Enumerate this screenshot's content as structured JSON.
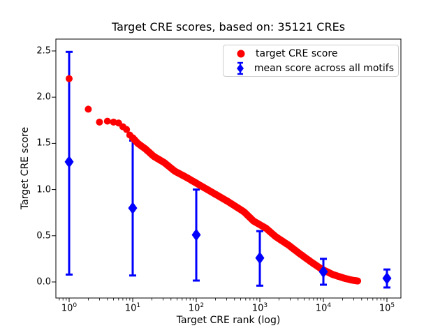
{
  "chart_data": {
    "type": "scatter",
    "title": "Target CRE scores, based on: 35121 CREs",
    "xlabel": "Target CRE rank (log)",
    "ylabel": "Target CRE score",
    "x_scale": "log",
    "x_tick_exponents": [
      0,
      1,
      2,
      3,
      4,
      5
    ],
    "y_tick_labels": [
      "0.0",
      "0.5",
      "1.0",
      "1.5",
      "2.0",
      "2.5"
    ],
    "xlim_log10": [
      -0.21,
      5.22
    ],
    "ylim": [
      -0.17,
      2.64
    ],
    "grid": false,
    "legend": {
      "position": "upper right",
      "entries": [
        "target CRE score",
        "mean score across all motifs"
      ]
    },
    "series": [
      {
        "name": "target CRE score",
        "type": "scatter",
        "marker": "circle",
        "color": "#ff0000",
        "total_points": 35121,
        "points_rank_score": [
          [
            1,
            2.2
          ],
          [
            2,
            1.87
          ],
          [
            3,
            1.73
          ],
          [
            4,
            1.74
          ],
          [
            5,
            1.73
          ],
          [
            6,
            1.72
          ],
          [
            7,
            1.68
          ],
          [
            8,
            1.65
          ],
          [
            9,
            1.59
          ],
          [
            10,
            1.56
          ]
        ],
        "band_log10rank_score_anchors": [
          [
            1.0,
            1.56
          ],
          [
            1.08,
            1.5
          ],
          [
            1.2,
            1.44
          ],
          [
            1.33,
            1.36
          ],
          [
            1.5,
            1.29
          ],
          [
            1.66,
            1.2
          ],
          [
            1.85,
            1.13
          ],
          [
            2.0,
            1.07
          ],
          [
            2.25,
            0.97
          ],
          [
            2.5,
            0.87
          ],
          [
            2.75,
            0.76
          ],
          [
            2.9,
            0.66
          ],
          [
            3.1,
            0.58
          ],
          [
            3.25,
            0.49
          ],
          [
            3.45,
            0.4
          ],
          [
            3.6,
            0.32
          ],
          [
            3.8,
            0.22
          ],
          [
            3.97,
            0.14
          ],
          [
            4.15,
            0.08
          ],
          [
            4.33,
            0.04
          ],
          [
            4.45,
            0.02
          ],
          [
            4.5456,
            0.01
          ]
        ]
      },
      {
        "name": "mean score across all motifs",
        "type": "errorbar",
        "marker": "diamond",
        "color": "#0000ff",
        "points": [
          {
            "rank": 1,
            "mean": 1.3,
            "lo": 0.08,
            "hi": 2.49
          },
          {
            "rank": 10,
            "mean": 0.8,
            "lo": 0.07,
            "hi": 1.53
          },
          {
            "rank": 100,
            "mean": 0.51,
            "lo": 0.015,
            "hi": 1.0
          },
          {
            "rank": 1000,
            "mean": 0.26,
            "lo": -0.04,
            "hi": 0.55
          },
          {
            "rank": 10000,
            "mean": 0.11,
            "lo": -0.03,
            "hi": 0.25
          },
          {
            "rank": 100000,
            "mean": 0.04,
            "lo": -0.06,
            "hi": 0.135
          }
        ]
      }
    ]
  }
}
